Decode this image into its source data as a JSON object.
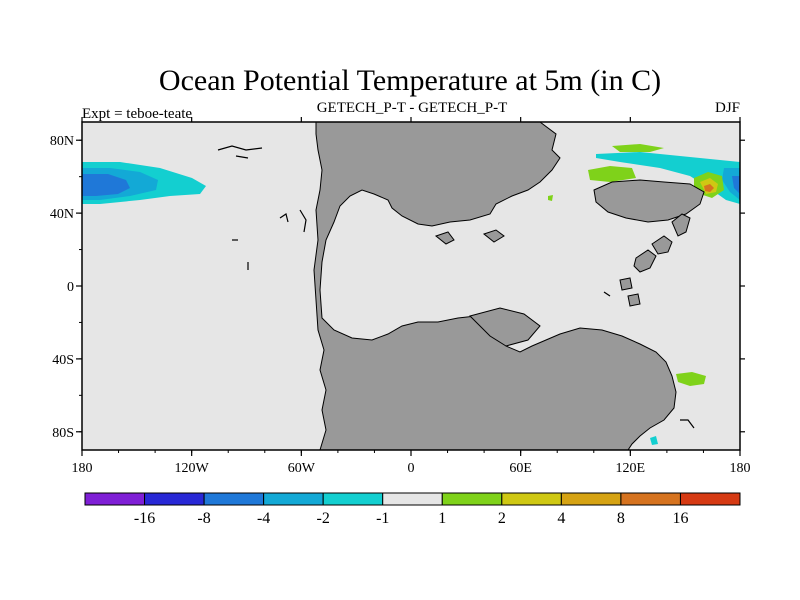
{
  "title": "Ocean Potential Temperature at 5m (in C)",
  "subtitle_left": "Expt = teboe-teate",
  "subtitle_center": "GETECH_P-T - GETECH_P-T",
  "subtitle_right": "DJF",
  "map": {
    "lon_range": [
      -180,
      180
    ],
    "lat_range": [
      -90,
      90
    ],
    "x_ticks": [
      {
        "lon": -180,
        "label": "180"
      },
      {
        "lon": -120,
        "label": "120W"
      },
      {
        "lon": -60,
        "label": "60W"
      },
      {
        "lon": 0,
        "label": "0"
      },
      {
        "lon": 60,
        "label": "60E"
      },
      {
        "lon": 120,
        "label": "120E"
      },
      {
        "lon": 180,
        "label": "180"
      }
    ],
    "y_ticks": [
      {
        "lat": 80,
        "label": "80N"
      },
      {
        "lat": 40,
        "label": "40N"
      },
      {
        "lat": 0,
        "label": "0"
      },
      {
        "lat": -40,
        "label": "40S"
      },
      {
        "lat": -80,
        "label": "80S"
      }
    ],
    "ocean_color": "#e6e6e6",
    "land_color": "#999999"
  },
  "colorbar": {
    "colors": [
      "#7f1fd6",
      "#2828d6",
      "#1f78d8",
      "#13a9d6",
      "#13cfd0",
      "#e6e6e6",
      "#7fd21a",
      "#cfc813",
      "#d6a313",
      "#d6731f",
      "#d63a13"
    ],
    "labels": [
      "-16",
      "-8",
      "-4",
      "-2",
      "-1",
      "1",
      "2",
      "4",
      "8",
      "16"
    ]
  },
  "anomalies": [
    {
      "region": "North Pacific",
      "level": "-8",
      "color": "#1f78d8"
    },
    {
      "region": "North Pacific",
      "level": "-4",
      "color": "#13a9d6"
    },
    {
      "region": "North Pacific",
      "level": "-2",
      "color": "#13cfd0"
    },
    {
      "region": "Northwest Pacific",
      "level": "2",
      "color": "#7fd21a"
    },
    {
      "region": "Northwest Pacific",
      "level": "4",
      "color": "#cfc813"
    },
    {
      "region": "Northwest Pacific",
      "level": "8",
      "color": "#d6731f"
    },
    {
      "region": "Southwest Pacific",
      "level": "2",
      "color": "#7fd21a"
    }
  ]
}
